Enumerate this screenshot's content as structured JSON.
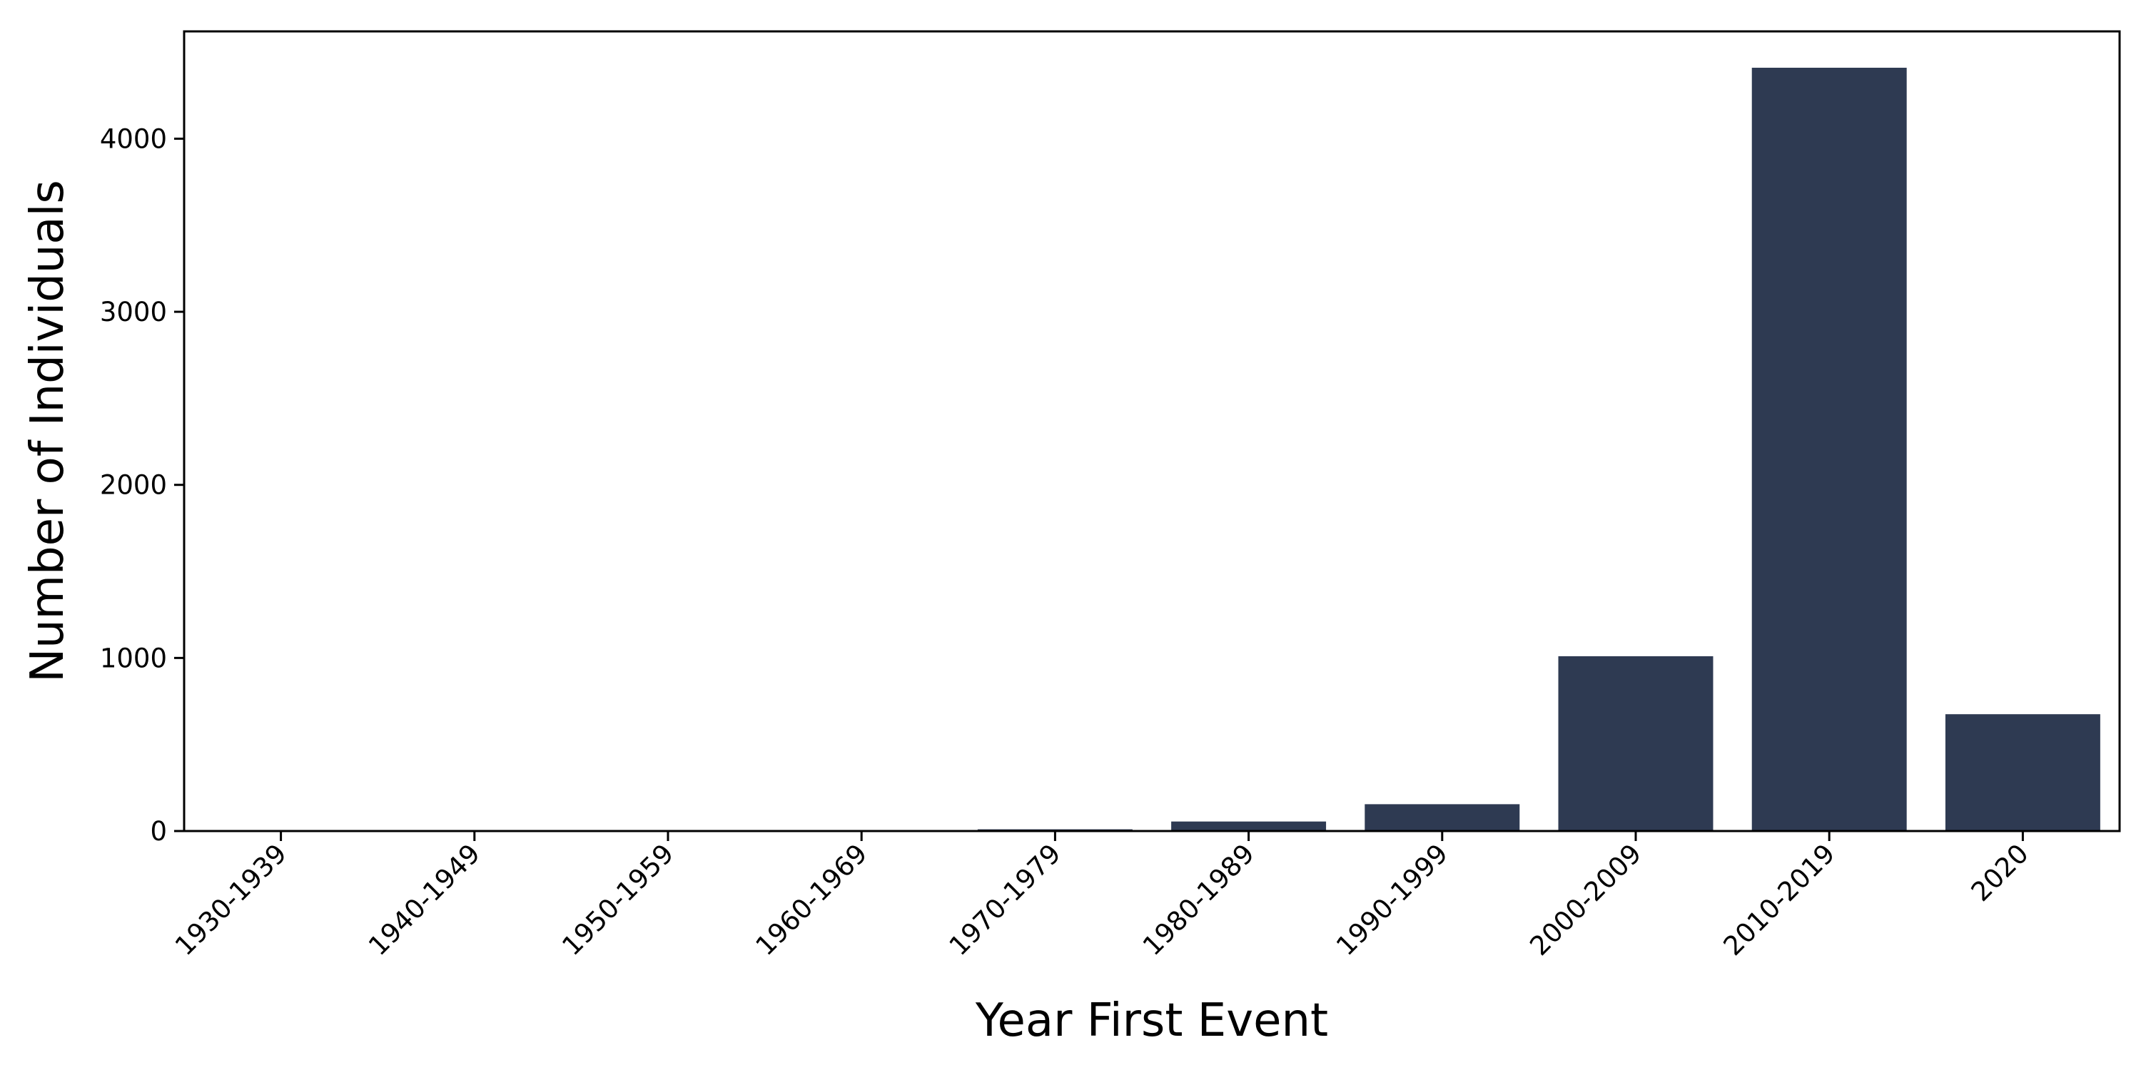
{
  "chart_data": {
    "type": "bar",
    "categories": [
      "1930-1939",
      "1940-1949",
      "1950-1959",
      "1960-1969",
      "1970-1979",
      "1980-1989",
      "1990-1999",
      "2000-2009",
      "2010-2019",
      "2020"
    ],
    "values": [
      2,
      2,
      2,
      3,
      10,
      55,
      155,
      1010,
      4410,
      675
    ],
    "title": "",
    "xlabel": "Year First Event",
    "ylabel": "Number of Individuals",
    "ylim": [
      0,
      4620
    ],
    "yticks": [
      0,
      1000,
      2000,
      3000,
      4000
    ],
    "bar_color": "#2e3a52",
    "grid": false,
    "legend": "none"
  }
}
